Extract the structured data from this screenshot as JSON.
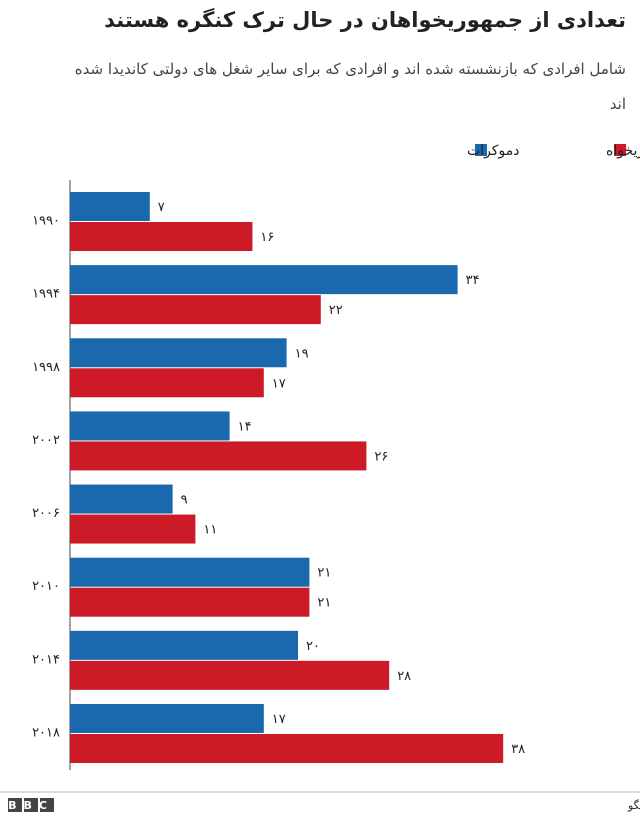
{
  "chart_data": {
    "type": "bar",
    "orientation": "horizontal",
    "title": "تعدادی از جمهوریخواهان در حال ترک کنگره هستند",
    "subtitle": "شامل افرادی که بازنشسته  شده اند و افرادی که برای سایر شغل های دولتی کاندیدا شده اند",
    "categories": [
      "۱۹۹۰",
      "۱۹۹۴",
      "۱۹۹۸",
      "۲۰۰۲",
      "۲۰۰۶",
      "۲۰۱۰",
      "۲۰۱۴",
      "۲۰۱۸"
    ],
    "series": [
      {
        "name": "دموکرات",
        "color": "#1a68ad",
        "values": [
          7,
          34,
          19,
          14,
          9,
          21,
          20,
          17
        ],
        "value_labels": [
          "۷",
          "۳۴",
          "۱۹",
          "۱۴",
          "۹",
          "۲۱",
          "۲۰",
          "۱۷"
        ]
      },
      {
        "name": "جمهوریخواه",
        "color": "#cc1a26",
        "values": [
          16,
          22,
          17,
          26,
          11,
          21,
          28,
          38
        ],
        "value_labels": [
          "۱۶",
          "۲۲",
          "۱۷",
          "۲۶",
          "۱۱",
          "۲۱",
          "۲۸",
          "۳۸"
        ]
      }
    ],
    "source": "منبع: مرکز سیاست پاسخگو",
    "logo": "BBC"
  }
}
